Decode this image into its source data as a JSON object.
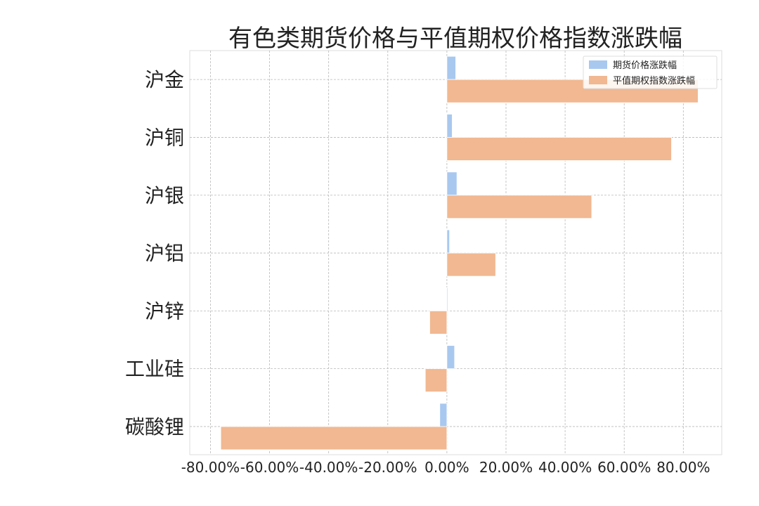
{
  "chart_data": {
    "type": "bar",
    "orientation": "horizontal",
    "title": "有色类期货价格与平值期权价格指数涨跌幅",
    "categories": [
      "沪金",
      "沪铜",
      "沪银",
      "沪铝",
      "沪锌",
      "工业硅",
      "碳酸锂"
    ],
    "series": [
      {
        "name": "期货价格涨跌幅",
        "color": "#a8c8ef",
        "values": [
          3.0,
          1.8,
          3.4,
          0.9,
          0.3,
          2.6,
          -2.4
        ]
      },
      {
        "name": "平值期权指数涨跌幅",
        "color": "#f1b891",
        "values": [
          85.0,
          76.0,
          49.0,
          16.5,
          -5.8,
          -7.3,
          -76.5
        ]
      }
    ],
    "xlim": [
      -87,
      93
    ],
    "xticks": [
      -80,
      -60,
      -40,
      -20,
      0,
      20,
      40,
      60,
      80
    ],
    "xtick_labels": [
      "-80.00%",
      "-60.00%",
      "-40.00%",
      "-20.00%",
      "0.00%",
      "20.00%",
      "40.00%",
      "60.00%",
      "80.00%"
    ],
    "grid": true,
    "legend_position": "top-right"
  }
}
